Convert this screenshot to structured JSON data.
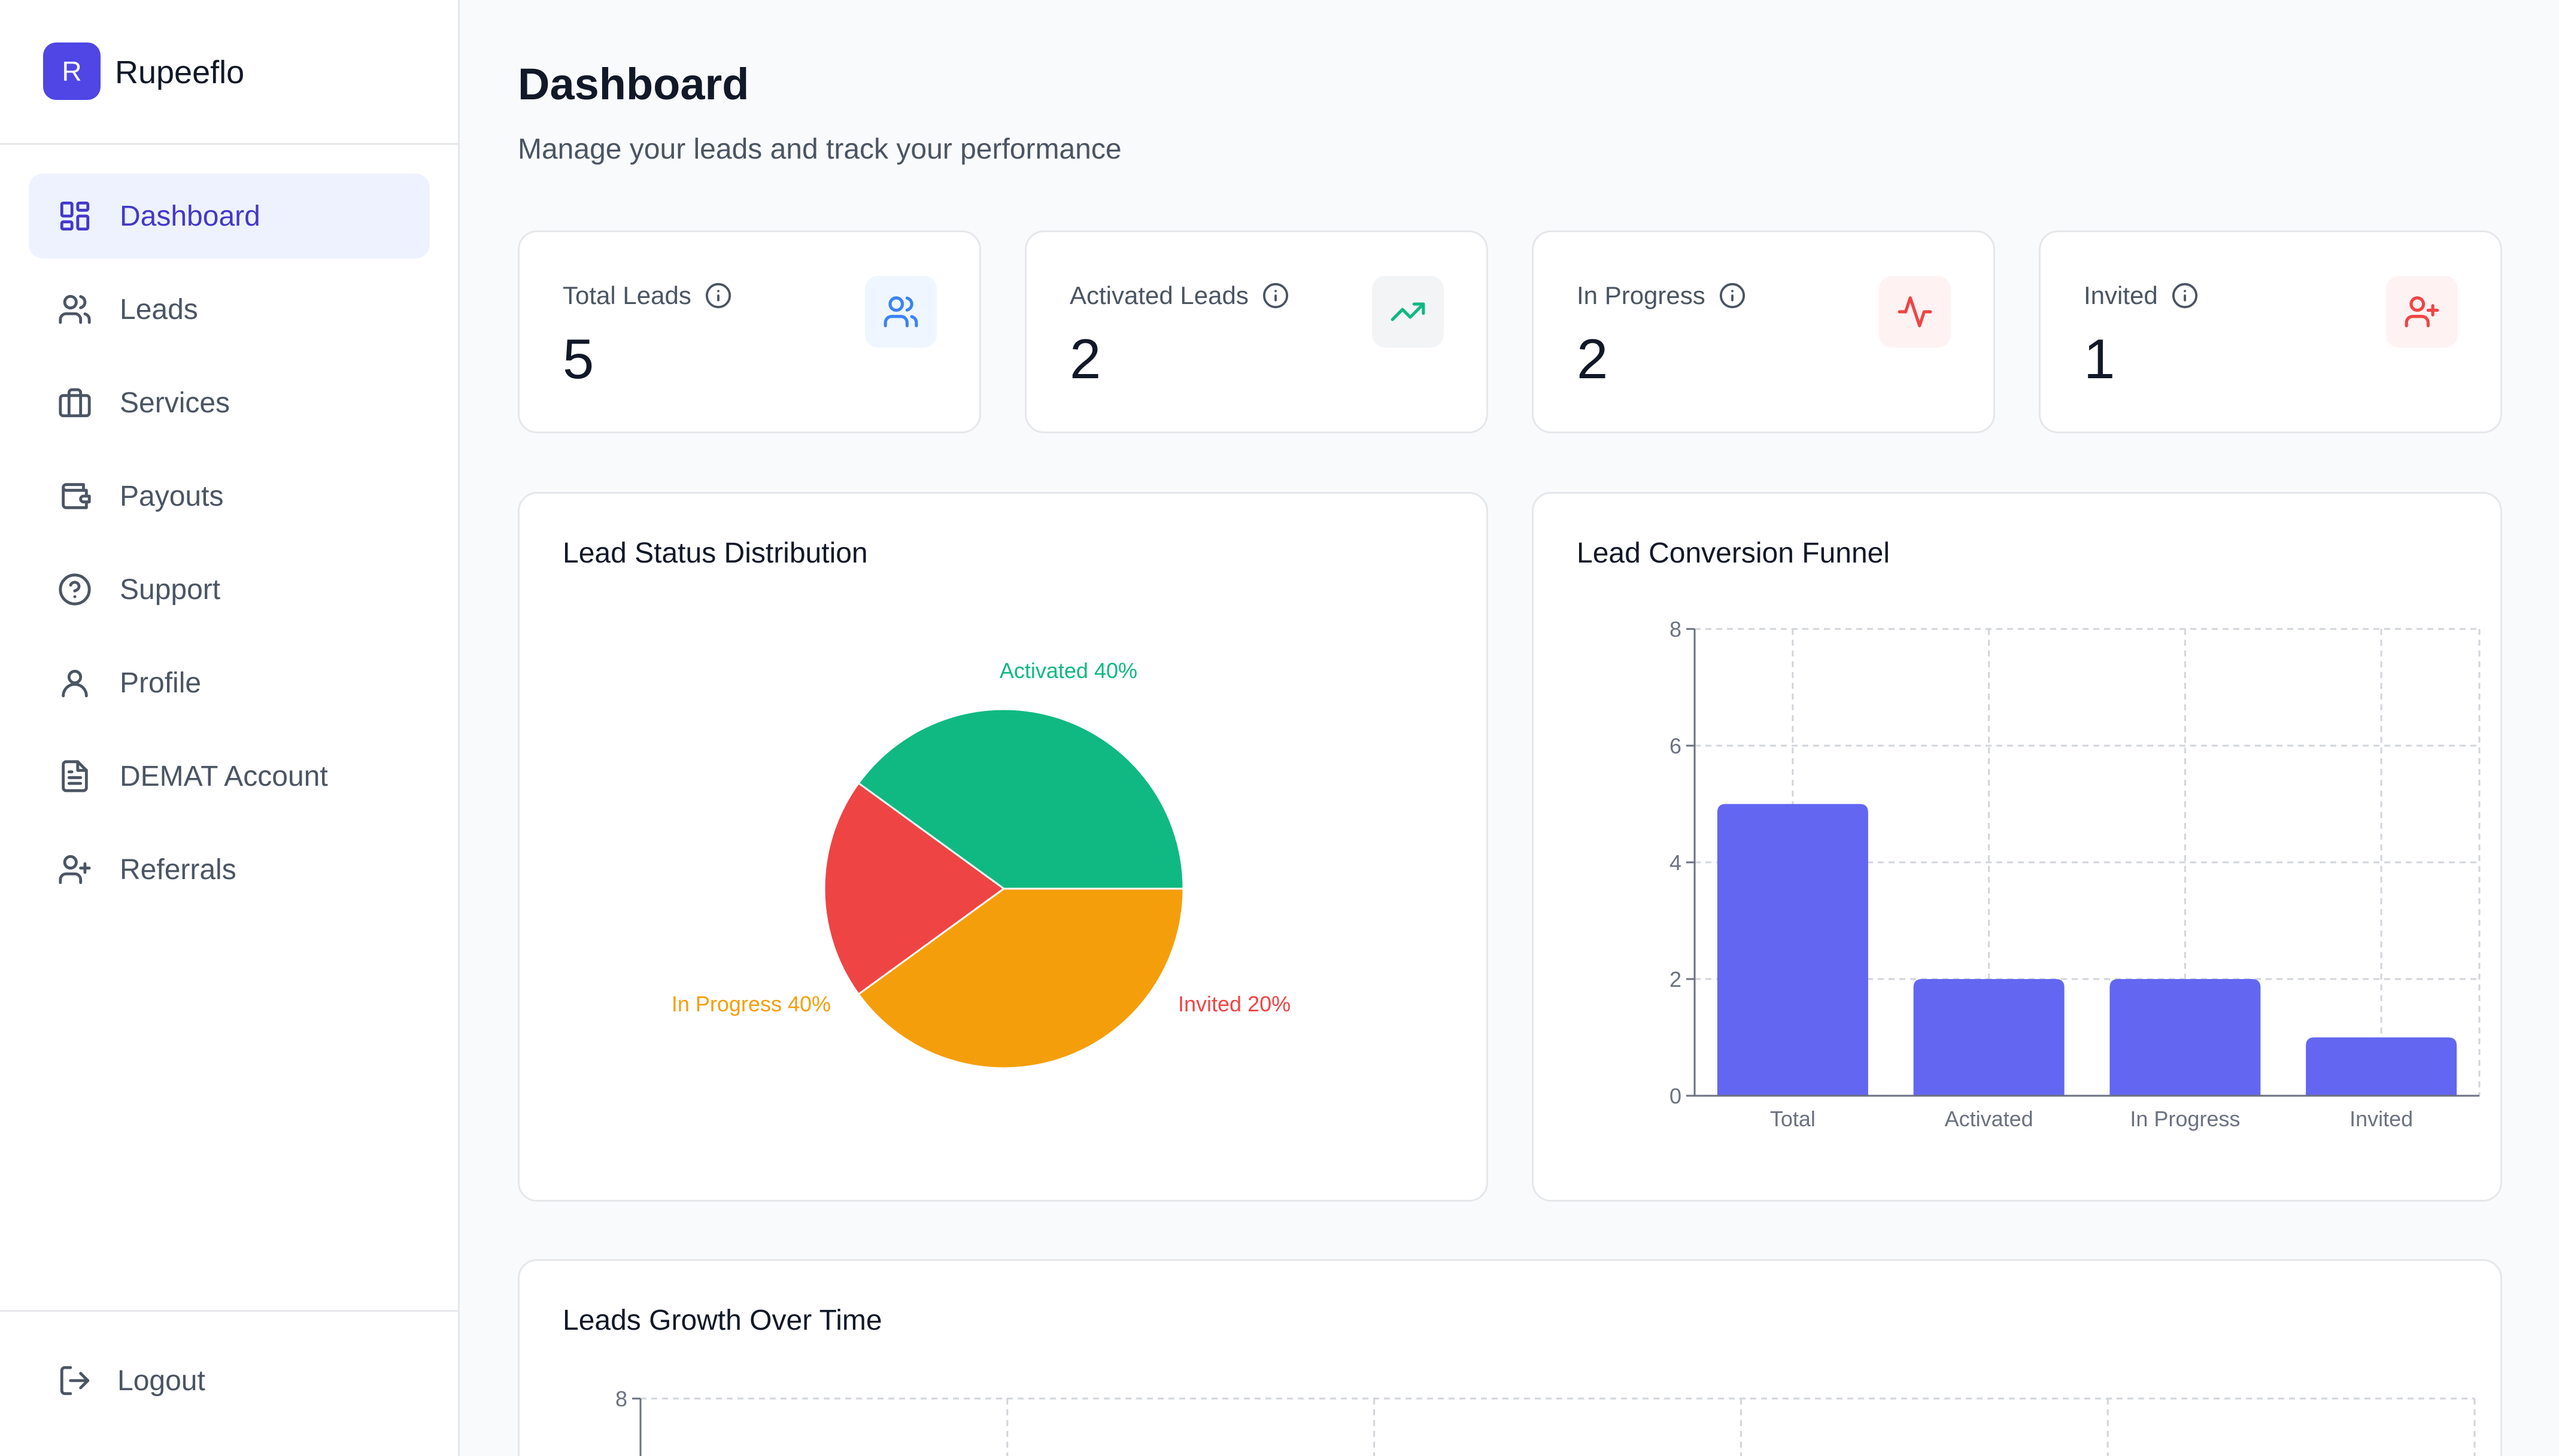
{
  "brand": {
    "logo_letter": "R",
    "name": "Rupeeflo"
  },
  "nav": {
    "items": [
      {
        "label": "Dashboard",
        "icon": "dashboard-icon",
        "active": true
      },
      {
        "label": "Leads",
        "icon": "users-icon"
      },
      {
        "label": "Services",
        "icon": "briefcase-icon"
      },
      {
        "label": "Payouts",
        "icon": "wallet-icon"
      },
      {
        "label": "Support",
        "icon": "help-circle-icon"
      },
      {
        "label": "Profile",
        "icon": "user-icon"
      },
      {
        "label": "DEMAT Account",
        "icon": "file-text-icon"
      },
      {
        "label": "Referrals",
        "icon": "user-plus-icon"
      }
    ],
    "logout_label": "Logout"
  },
  "header": {
    "title": "Dashboard",
    "subtitle": "Manage your leads and track your performance"
  },
  "stats": [
    {
      "label": "Total Leads",
      "value": "5",
      "icon": "users-icon",
      "icon_color": "#3b82f6",
      "icon_bg": "#eff6ff"
    },
    {
      "label": "Activated Leads",
      "value": "2",
      "icon": "trending-up-icon",
      "icon_color": "#10b981",
      "icon_bg": "#f3f4f6"
    },
    {
      "label": "In Progress",
      "value": "2",
      "icon": "activity-icon",
      "icon_color": "#ef4444",
      "icon_bg": "#fef2f2"
    },
    {
      "label": "Invited",
      "value": "1",
      "icon": "user-plus-icon",
      "icon_color": "#ef4444",
      "icon_bg": "#fef2f2"
    }
  ],
  "panels": {
    "status_distribution_title": "Lead Status Distribution",
    "conversion_funnel_title": "Lead Conversion Funnel",
    "growth_title": "Leads Growth Over Time"
  },
  "chart_data": [
    {
      "type": "pie",
      "title": "Lead Status Distribution",
      "slices": [
        {
          "name": "Activated",
          "value": 40,
          "label": "Activated 40%",
          "color": "#10b981"
        },
        {
          "name": "Invited",
          "value": 20,
          "label": "Invited 20%",
          "color": "#ef4444"
        },
        {
          "name": "In Progress",
          "value": 40,
          "label": "In Progress 40%",
          "color": "#f59e0b"
        }
      ]
    },
    {
      "type": "bar",
      "title": "Lead Conversion Funnel",
      "categories": [
        "Total",
        "Activated",
        "In Progress",
        "Invited"
      ],
      "values": [
        5,
        2,
        2,
        1
      ],
      "ylim": [
        0,
        8
      ],
      "yticks": [
        0,
        2,
        4,
        6,
        8
      ],
      "grid": true,
      "color": "#6366f1"
    },
    {
      "type": "line",
      "title": "Leads Growth Over Time",
      "yticks_visible": [
        8
      ],
      "grid": true
    }
  ]
}
